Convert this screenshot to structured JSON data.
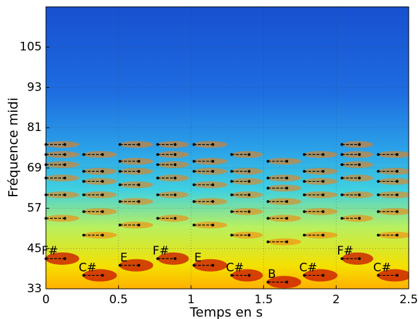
{
  "chart_data": {
    "type": "spectrogram",
    "xlabel": "Temps en s",
    "ylabel": "Fréquence midi",
    "xlim": [
      0,
      2.5
    ],
    "xticks": [
      0,
      0.5,
      1,
      1.5,
      2,
      2.5
    ],
    "ylim": [
      33,
      117
    ],
    "yticks": [
      33,
      45,
      57,
      69,
      81,
      93,
      105
    ],
    "grid": true,
    "note_color": "#000000",
    "notes": [
      {
        "label": "F#",
        "start": 0,
        "end": 0.13,
        "pitches": [
          42,
          54,
          61,
          66,
          70,
          73,
          76
        ]
      },
      {
        "label": "C#",
        "start": 0.26,
        "end": 0.39,
        "pitches": [
          37,
          49,
          56,
          61,
          65,
          68,
          73
        ]
      },
      {
        "label": "E",
        "start": 0.51,
        "end": 0.64,
        "pitches": [
          40,
          52,
          59,
          64,
          68,
          71,
          76
        ]
      },
      {
        "label": "F#",
        "start": 0.77,
        "end": 0.89,
        "pitches": [
          42,
          54,
          61,
          66,
          70,
          73,
          76
        ]
      },
      {
        "label": "E",
        "start": 1.02,
        "end": 1.15,
        "pitches": [
          40,
          52,
          59,
          64,
          68,
          71,
          76
        ]
      },
      {
        "label": "C#",
        "start": 1.28,
        "end": 1.4,
        "pitches": [
          37,
          49,
          56,
          61,
          65,
          68,
          73
        ]
      },
      {
        "label": "B",
        "start": 1.53,
        "end": 1.66,
        "pitches": [
          35,
          47,
          54,
          59,
          63,
          66,
          71
        ]
      },
      {
        "label": "C#",
        "start": 1.78,
        "end": 1.91,
        "pitches": [
          37,
          49,
          56,
          61,
          65,
          68,
          73
        ]
      },
      {
        "label": "F#",
        "start": 2.04,
        "end": 2.16,
        "pitches": [
          42,
          54,
          61,
          66,
          70,
          73,
          76
        ]
      },
      {
        "label": "C#",
        "start": 2.29,
        "end": 2.42,
        "pitches": [
          37,
          49,
          56,
          61,
          65,
          68,
          73
        ]
      }
    ]
  }
}
